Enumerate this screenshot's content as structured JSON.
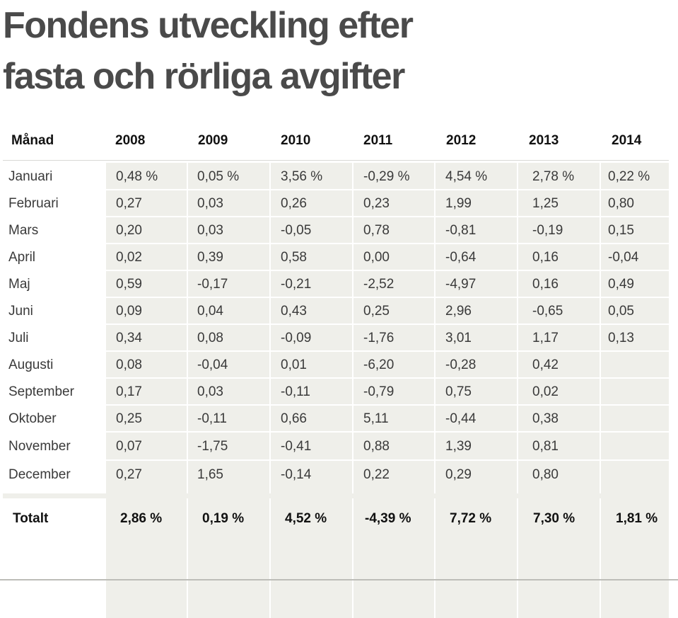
{
  "title_line1": "Fondens utveckling efter",
  "title_line2": "fasta och rörliga avgifter",
  "chart_data": {
    "type": "table",
    "header": [
      "Månad",
      "2008",
      "2009",
      "2010",
      "2011",
      "2012",
      "2013",
      "2014"
    ],
    "rows": [
      [
        "Januari",
        "0,48 %",
        "0,05 %",
        "3,56 %",
        "-0,29 %",
        "4,54 %",
        "2,78 %",
        "0,22 %"
      ],
      [
        "Februari",
        "0,27",
        "0,03",
        "0,26",
        "0,23",
        "1,99",
        "1,25",
        "0,80"
      ],
      [
        "Mars",
        "0,20",
        "0,03",
        "-0,05",
        "0,78",
        "-0,81",
        "-0,19",
        "0,15"
      ],
      [
        "April",
        "0,02",
        "0,39",
        "0,58",
        "0,00",
        "-0,64",
        "0,16",
        "-0,04"
      ],
      [
        "Maj",
        "0,59",
        "-0,17",
        "-0,21",
        "-2,52",
        "-4,97",
        "0,16",
        "0,49"
      ],
      [
        "Juni",
        "0,09",
        "0,04",
        "0,43",
        "0,25",
        "2,96",
        "-0,65",
        "0,05"
      ],
      [
        "Juli",
        "0,34",
        "0,08",
        "-0,09",
        "-1,76",
        "3,01",
        "1,17",
        "0,13"
      ],
      [
        "Augusti",
        "0,08",
        "-0,04",
        "0,01",
        "-6,20",
        "-0,28",
        "0,42",
        ""
      ],
      [
        "September",
        "0,17",
        "0,03",
        "-0,11",
        "-0,79",
        "0,75",
        "0,02",
        ""
      ],
      [
        "Oktober",
        "0,25",
        "-0,11",
        "0,66",
        "5,11",
        "-0,44",
        "0,38",
        ""
      ],
      [
        "November",
        "0,07",
        "-1,75",
        "-0,41",
        "0,88",
        "1,39",
        "0,81",
        ""
      ],
      [
        "December",
        "0,27",
        "1,65",
        "-0,14",
        "0,22",
        "0,29",
        "0,80",
        ""
      ]
    ],
    "total": [
      "Totalt",
      "2,86 %",
      "0,19 %",
      "4,52 %",
      "-4,39 %",
      "7,72 %",
      "7,30 %",
      "1,81 %"
    ],
    "colors": {
      "cell_bg": "#efefea",
      "text": "#3a3a3a",
      "title": "#4a4a4a"
    }
  }
}
